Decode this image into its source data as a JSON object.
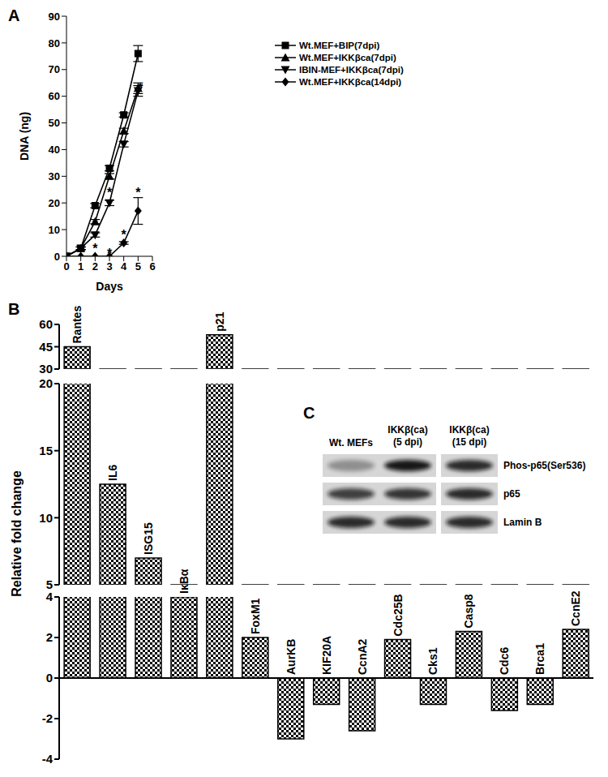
{
  "chart_data": [
    {
      "title": "A",
      "type": "line",
      "x_label": "Days",
      "y_label": "DNA (ng)",
      "x": [
        0,
        1,
        2,
        3,
        4,
        5
      ],
      "xlim": [
        0,
        6
      ],
      "xticks": [
        0,
        1,
        2,
        3,
        4,
        5,
        6
      ],
      "ylim": [
        0,
        90
      ],
      "yticks": [
        0,
        10,
        20,
        30,
        40,
        50,
        60,
        70,
        80,
        90
      ],
      "legend": "upper right",
      "series": [
        {
          "name": "Wt.MEF+BIP(7dpi)",
          "color": "#000000",
          "marker": "square",
          "values": [
            0,
            3,
            19,
            33,
            53,
            76
          ],
          "errors": [
            0,
            0.5,
            0.8,
            1,
            0.8,
            3
          ]
        },
        {
          "name": "Wt.MEF+IKKβca(7dpi)",
          "color": "#000000",
          "marker": "triangle",
          "values": [
            0,
            3,
            13,
            30,
            47,
            63
          ],
          "errors": [
            0,
            0.5,
            0.8,
            1,
            1,
            2
          ]
        },
        {
          "name": "IBIN-MEF+IKKβca(7dpi)",
          "color": "#000000",
          "marker": "triangle_down",
          "values": [
            0,
            3,
            8,
            20,
            42,
            62
          ],
          "errors": [
            0,
            0.5,
            0.8,
            1,
            1,
            2
          ]
        },
        {
          "name": "Wt.MEF+IKKβca(14dpi)",
          "color": "#000000",
          "marker": "diamond",
          "values": [
            0,
            0,
            0,
            0,
            5,
            17
          ],
          "errors": [
            0,
            0,
            0,
            0,
            0.5,
            5
          ]
        }
      ],
      "annotations": [
        {
          "text": "*",
          "x": 2,
          "y": 12
        },
        {
          "text": "*",
          "x": 2,
          "y": 3
        },
        {
          "text": "*",
          "x": 3,
          "y": 24
        },
        {
          "text": "*",
          "x": 3,
          "y": 1
        },
        {
          "text": "*",
          "x": 4,
          "y": 8
        },
        {
          "text": "*",
          "x": 5,
          "y": 24
        },
        {
          "text": "*",
          "x": 5.15,
          "y": 63
        }
      ]
    },
    {
      "title": "B",
      "type": "bar",
      "y_label": "Relative fold change",
      "categories": [
        "Rantes",
        "IL6",
        "ISG15",
        "IκBα",
        "p21",
        "FoxM1",
        "AurKB",
        "KIF20A",
        "CcnA2",
        "Cdc25B",
        "Cks1",
        "Casp8",
        "Cdc6",
        "Brca1",
        "CcnE2"
      ],
      "values": [
        45,
        12.5,
        7,
        4,
        53,
        2,
        -3,
        -1.3,
        -2.6,
        1.9,
        -1.3,
        2.3,
        -1.6,
        -1.3,
        2.4
      ],
      "color": "#000000",
      "ylim": [
        -4,
        60
      ],
      "yticks": [
        -4,
        -2,
        0,
        2,
        4,
        5,
        10,
        15,
        20,
        30,
        45,
        60
      ],
      "y_breaks": [
        [
          4,
          5
        ],
        [
          20,
          30
        ]
      ]
    }
  ],
  "blot": {
    "title": "C",
    "lanes": [
      "Wt. MEFs",
      "IKKβ(ca)\n(5 dpi)",
      "IKKβ(ca)\n(15 dpi)"
    ],
    "rows": [
      {
        "label": "Phos-p65(Ser536)",
        "intensity": [
          0.35,
          0.95,
          0.85
        ]
      },
      {
        "label": "p65",
        "intensity": [
          0.75,
          0.8,
          0.85
        ]
      },
      {
        "label": "Lamin B",
        "intensity": [
          0.85,
          0.85,
          0.85
        ]
      }
    ]
  }
}
